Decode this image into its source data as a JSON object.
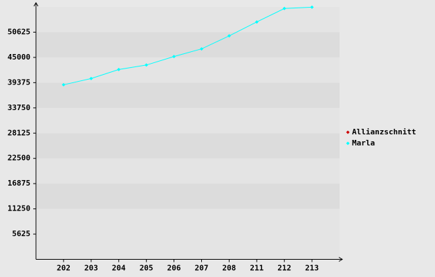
{
  "chart_data": {
    "type": "line",
    "categories": [
      "202",
      "203",
      "204",
      "205",
      "206",
      "207",
      "208",
      "211",
      "212",
      "213"
    ],
    "series": [
      {
        "name": "Allianzschnitt",
        "color": "#cc0000",
        "values": [
          null,
          null,
          null,
          null,
          null,
          null,
          null,
          null,
          null,
          null
        ]
      },
      {
        "name": "Marla",
        "color": "#00ffff",
        "values": [
          38900,
          40300,
          42300,
          43300,
          45200,
          46900,
          49800,
          52900,
          55900,
          56200
        ]
      }
    ],
    "ylim": [
      0,
      56250
    ],
    "yticks": [
      5625,
      11250,
      16875,
      22500,
      28125,
      33750,
      39375,
      45000,
      50625
    ],
    "grid": true,
    "legend": "right"
  }
}
